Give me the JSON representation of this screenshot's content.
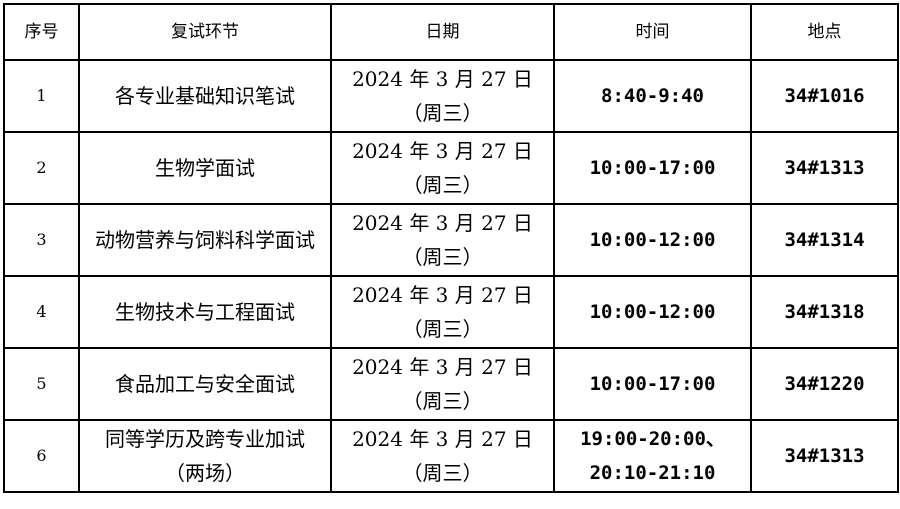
{
  "headers": [
    "序号",
    "复试环节",
    "日期",
    "时间",
    "地点"
  ],
  "rows": [
    {
      "no": "1",
      "stage": "各专业基础知识笔试",
      "date_line1": "2024 年 3 月 27 日",
      "date_line2": "（周三）",
      "time": "8:40-9:40",
      "place": "34#1016"
    },
    {
      "no": "2",
      "stage": "生物学面试",
      "date_line1": "2024 年 3 月 27 日",
      "date_line2": "（周三）",
      "time": "10:00-17:00",
      "place": "34#1313"
    },
    {
      "no": "3",
      "stage": "动物营养与饲料科学面试",
      "date_line1": "2024 年 3 月 27 日",
      "date_line2": "（周三）",
      "time": "10:00-12:00",
      "place": "34#1314"
    },
    {
      "no": "4",
      "stage": "生物技术与工程面试",
      "date_line1": "2024 年 3 月 27 日",
      "date_line2": "（周三）",
      "time": "10:00-12:00",
      "place": "34#1318"
    },
    {
      "no": "5",
      "stage": "食品加工与安全面试",
      "date_line1": "2024 年 3 月 27 日",
      "date_line2": "（周三）",
      "time": "10:00-17:00",
      "place": "34#1220"
    },
    {
      "no": "6",
      "stage": "同等学历及跨专业加试（两场）",
      "date_line1": "2024 年 3 月 27 日",
      "date_line2": "（周三）",
      "time": "19:00-20:00、20:10-21:10",
      "place": "34#1313"
    }
  ]
}
